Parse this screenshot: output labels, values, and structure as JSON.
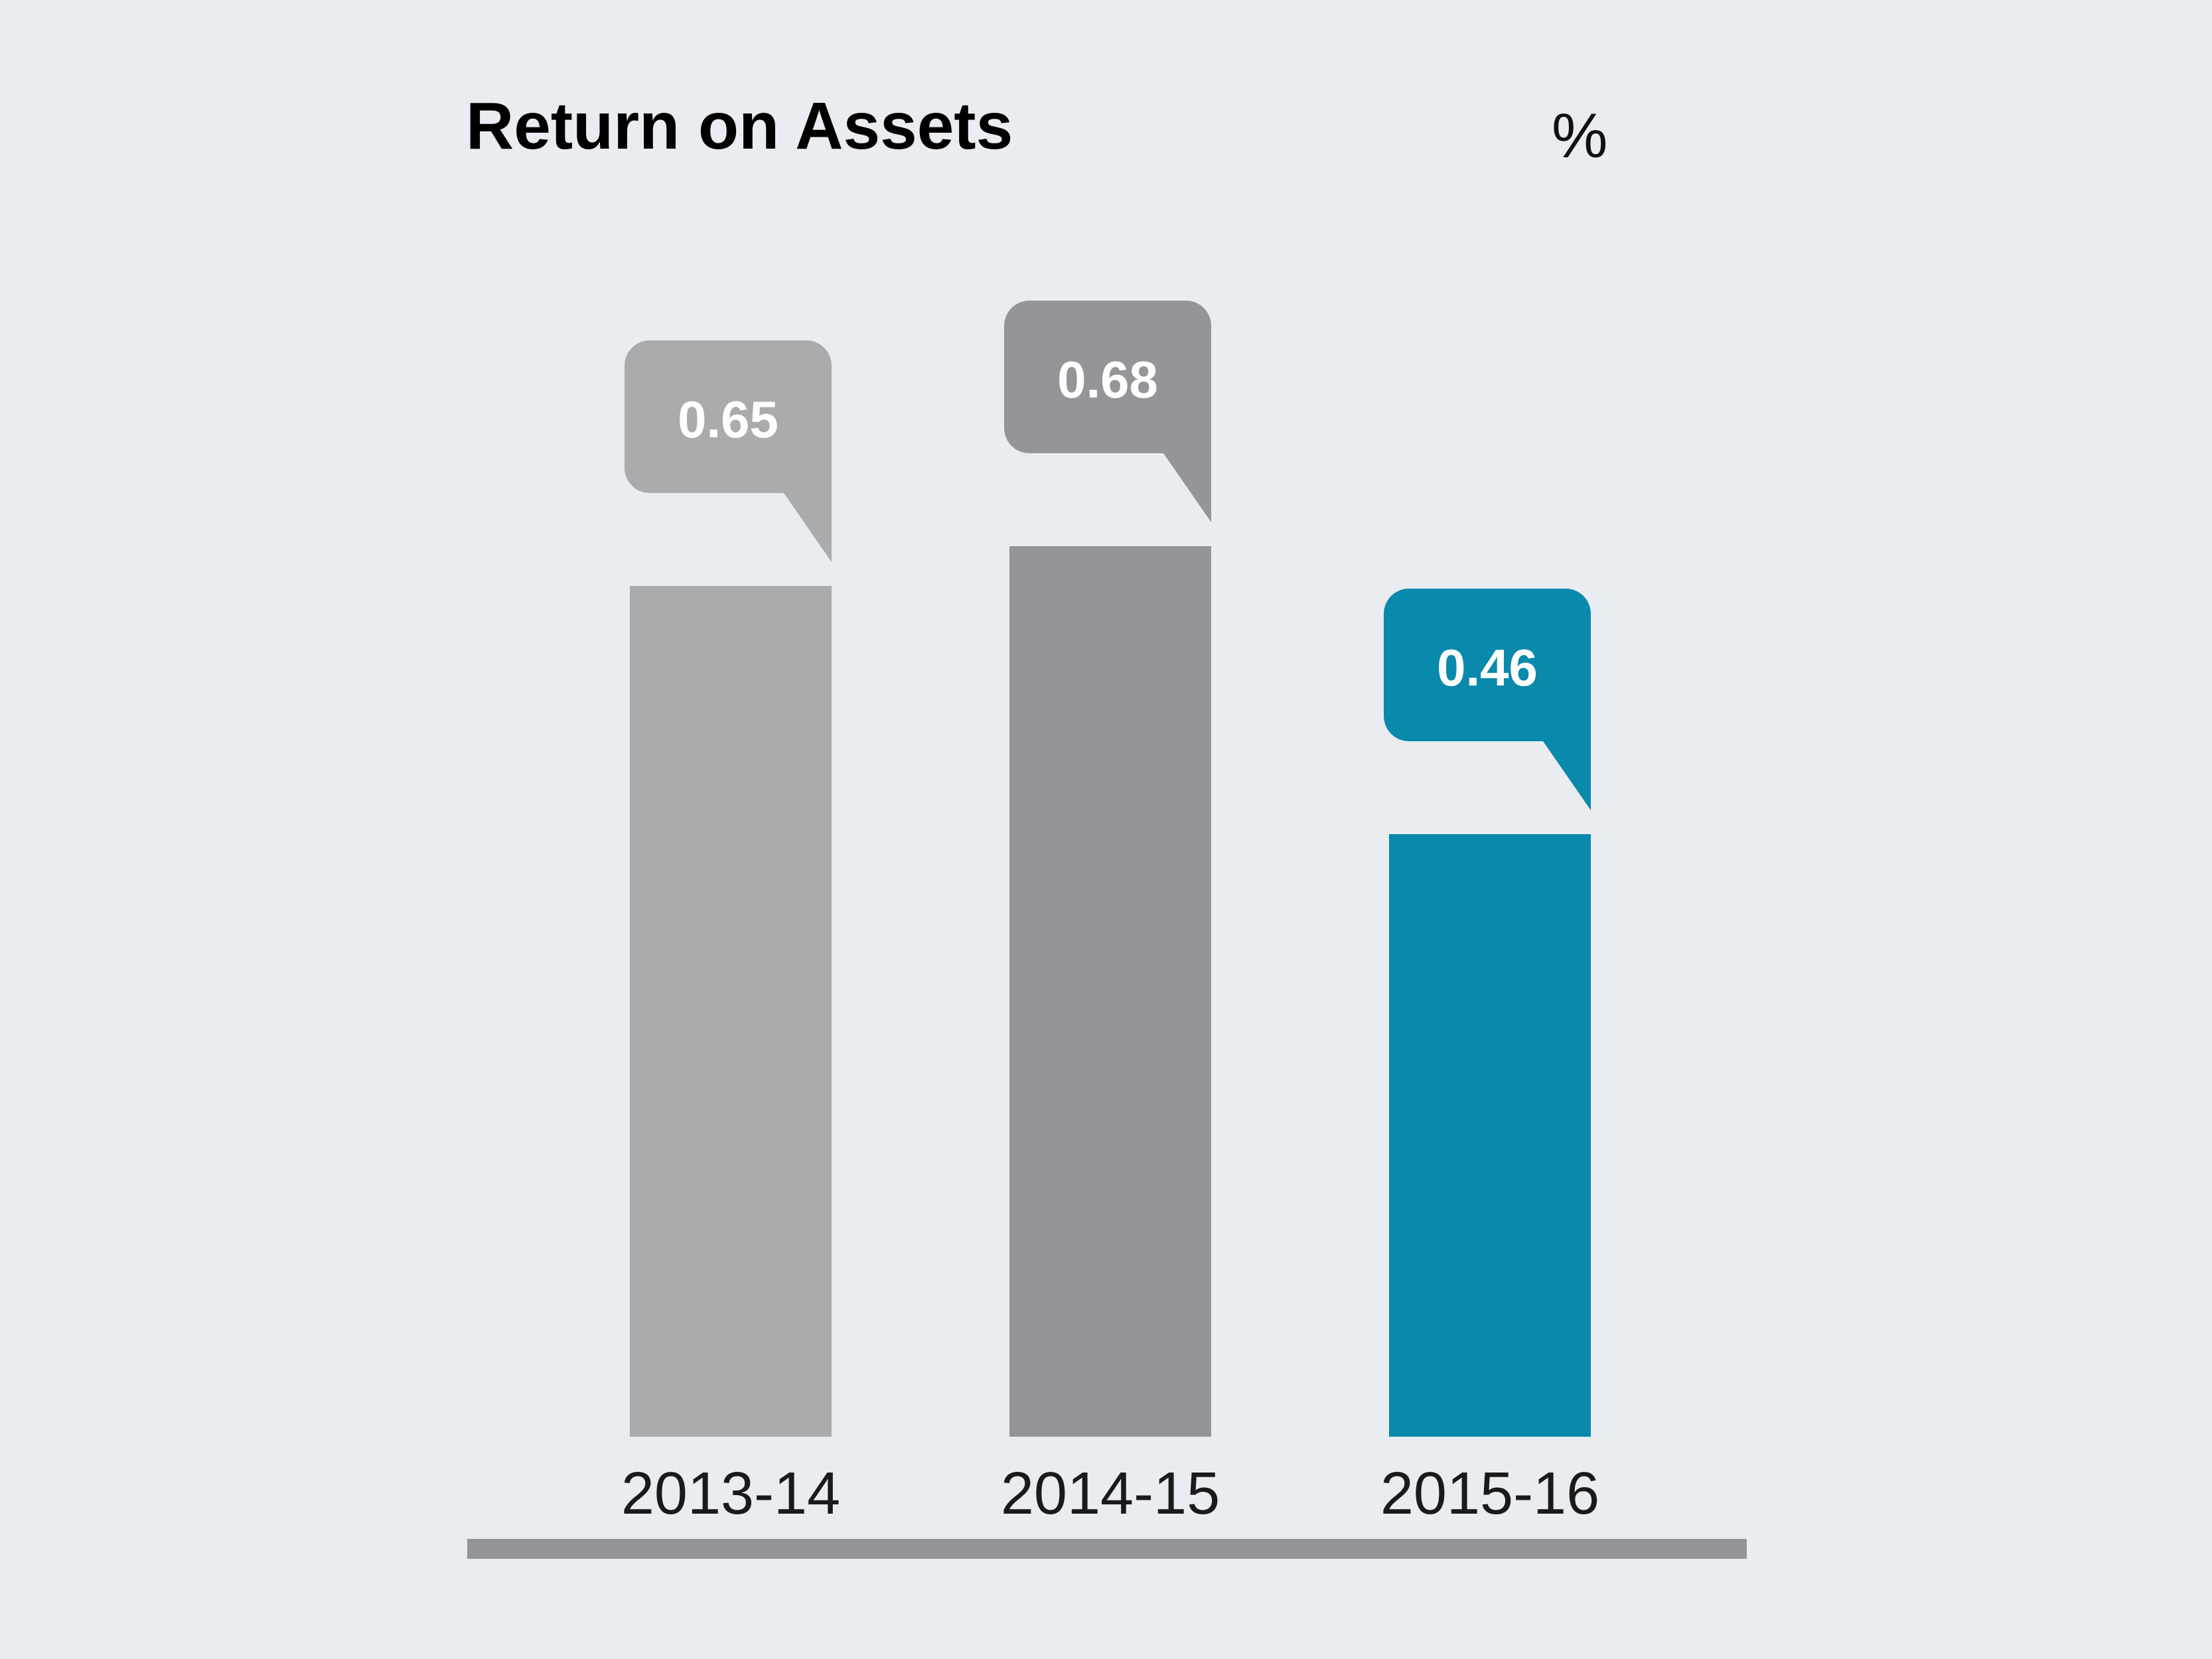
{
  "header": {
    "title": "Return on Assets",
    "unit": "%"
  },
  "chart_data": {
    "type": "bar",
    "title": "Return on Assets",
    "ylabel": "%",
    "categories": [
      "2013-14",
      "2014-15",
      "2015-16"
    ],
    "values": [
      0.65,
      0.68,
      0.46
    ],
    "value_labels": [
      "0.65",
      "0.68",
      "0.46"
    ],
    "colors": [
      "#a9abad",
      "#939598",
      "#0989ab"
    ],
    "highlight_index": 2,
    "callout_text_color": "#ffffff",
    "axis_line_color": "#939598",
    "background_color": "#e9ecf0",
    "ylim": [
      0,
      0.75
    ],
    "grid": false,
    "legend": false,
    "data_labels": "speech-bubble callouts above each bar"
  }
}
